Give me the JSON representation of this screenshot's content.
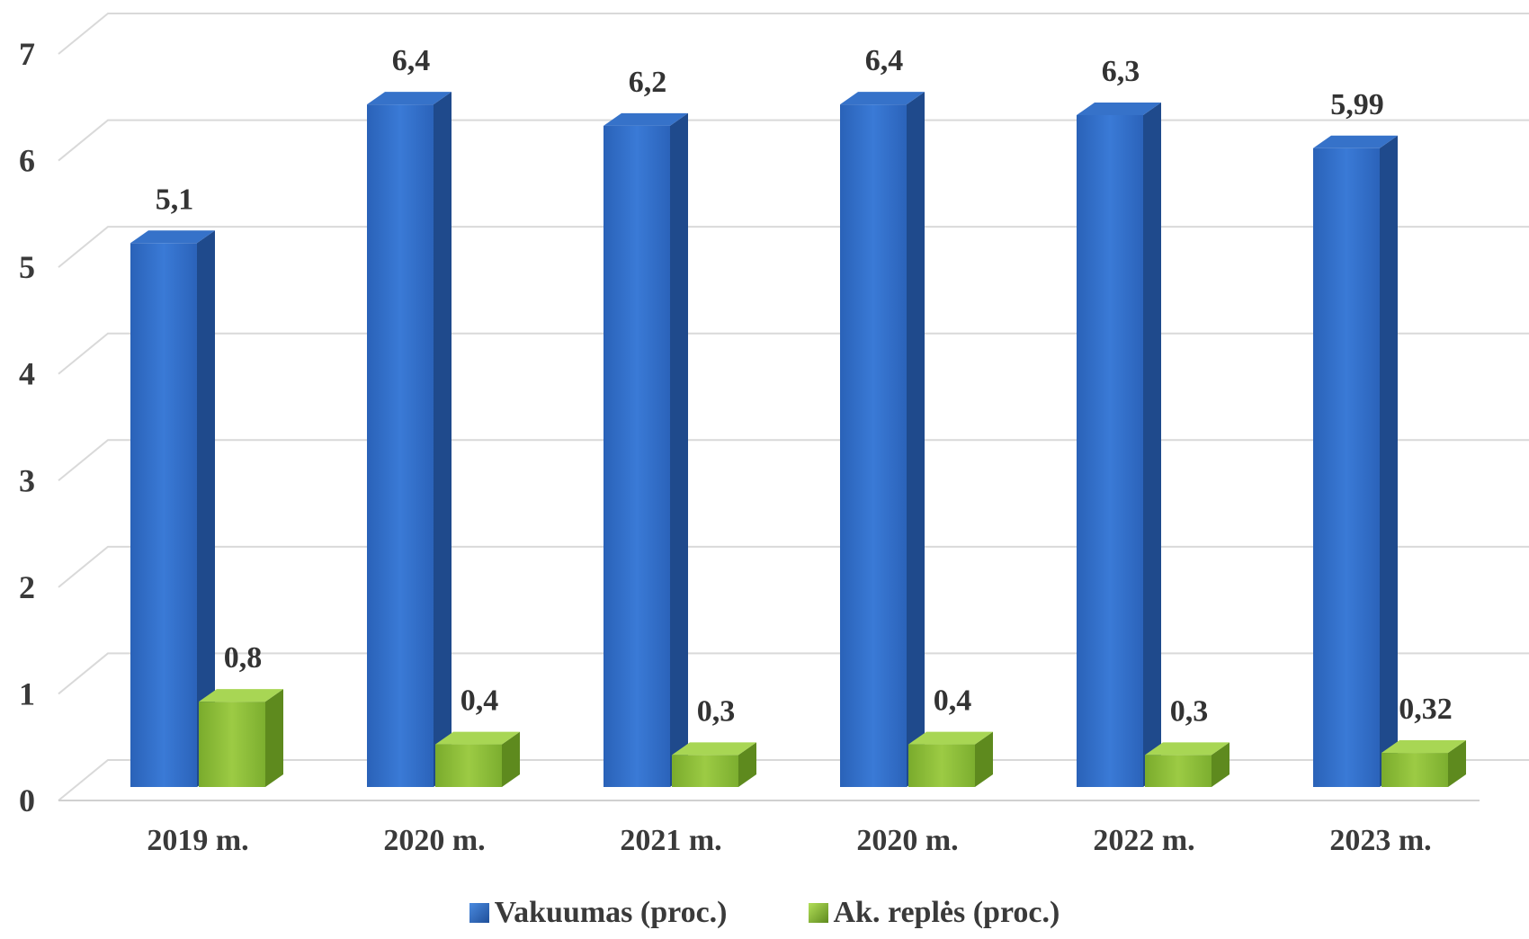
{
  "chart_data": {
    "type": "bar",
    "categories": [
      "2019 m.",
      "2020 m.",
      "2021 m.",
      "2020 m.",
      "2022 m.",
      "2023 m."
    ],
    "series": [
      {
        "name": "Vakuumas (proc.)",
        "values": [
          5.1,
          6.4,
          6.2,
          6.4,
          6.3,
          5.99
        ],
        "labels": [
          "5,1",
          "6,4",
          "6,2",
          "6,4",
          "6,3",
          "5,99"
        ],
        "color": "#2f6cc4"
      },
      {
        "name": "Ak. replės  (proc.)",
        "values": [
          0.8,
          0.4,
          0.3,
          0.4,
          0.3,
          0.32
        ],
        "labels": [
          "0,8",
          "0,4",
          "0,3",
          "0,4",
          "0,3",
          "0,32"
        ],
        "color": "#8fbf3a"
      }
    ],
    "yticks": [
      "0",
      "1",
      "2",
      "3",
      "4",
      "5",
      "6",
      "7"
    ],
    "ylim": [
      0,
      7
    ],
    "grid": true,
    "legend_position": "bottom",
    "three_d": true
  }
}
